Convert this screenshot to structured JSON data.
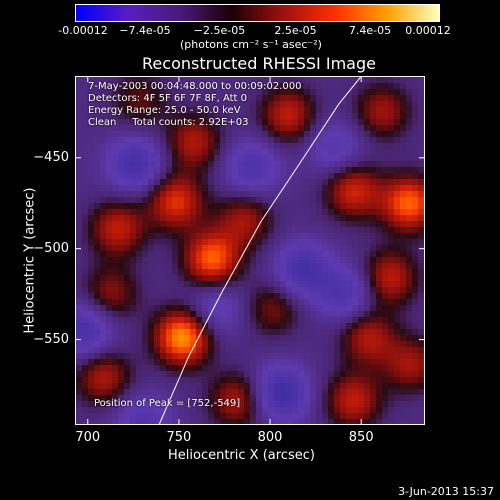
{
  "colorbar": {
    "ticks": [
      "-0.00012",
      "−7.4e-05",
      "−2.5e-05",
      "2.5e-05",
      "7.4e-05",
      "0.00012"
    ],
    "tick_values": [
      -0.00012,
      -7.4e-05,
      -2.5e-05,
      2.5e-05,
      7.4e-05,
      0.00012
    ],
    "units_label": "(photons cm⁻² s⁻¹ asec⁻²)",
    "colors": [
      "#0000ff",
      "#5a1cc0",
      "#4a1a7a",
      "#1a0006",
      "#a01010",
      "#ff3000",
      "#ffa000",
      "#ffffc0"
    ]
  },
  "chart_data": {
    "type": "heatmap",
    "title": "Reconstructed RHESSI Image",
    "xlabel": "Heliocentric X (arcsec)",
    "ylabel": "Heliocentric Y (arcsec)",
    "xlim": [
      693,
      885
    ],
    "ylim": [
      -597,
      -405
    ],
    "x_ticks": [
      700,
      750,
      800,
      850
    ],
    "y_ticks": [
      -450,
      -500,
      -550
    ],
    "annotations": [
      "7-May-2003 00:04:48.000 to 00:09:02.000",
      "Detectors: 4F 5F 6F 7F 8F, Att 0",
      "Energy Range: 25.0 - 50.0 keV",
      "Clean     Total counts: 2.92E+03"
    ],
    "peak_text": "Position of Peak = [752,-549]",
    "peak_position": [
      752,
      -549
    ],
    "limb_points": [
      [
        739,
        -597
      ],
      [
        755,
        -560
      ],
      [
        773,
        -525
      ],
      [
        795,
        -485
      ],
      [
        815,
        -455
      ],
      [
        838,
        -420
      ],
      [
        850,
        -405
      ]
    ],
    "blobs": [
      {
        "x": 752,
        "y": -549,
        "v": 1.0
      },
      {
        "x": 748,
        "y": -474,
        "v": 0.7
      },
      {
        "x": 758,
        "y": -441,
        "v": 0.55
      },
      {
        "x": 716,
        "y": -489,
        "v": 0.6
      },
      {
        "x": 768,
        "y": -506,
        "v": 0.85
      },
      {
        "x": 712,
        "y": -525,
        "v": 0.45
      },
      {
        "x": 708,
        "y": -571,
        "v": 0.55
      },
      {
        "x": 782,
        "y": -584,
        "v": 0.55
      },
      {
        "x": 786,
        "y": -484,
        "v": 0.5
      },
      {
        "x": 810,
        "y": -426,
        "v": 0.6
      },
      {
        "x": 862,
        "y": -424,
        "v": 0.5
      },
      {
        "x": 846,
        "y": -468,
        "v": 0.65
      },
      {
        "x": 877,
        "y": -475,
        "v": 0.85
      },
      {
        "x": 866,
        "y": -516,
        "v": 0.6
      },
      {
        "x": 854,
        "y": -549,
        "v": 0.55
      },
      {
        "x": 878,
        "y": -564,
        "v": 0.5
      },
      {
        "x": 846,
        "y": -584,
        "v": 0.6
      },
      {
        "x": 802,
        "y": -533,
        "v": 0.4
      },
      {
        "x": 728,
        "y": -418,
        "v": 0.35
      },
      {
        "x": 790,
        "y": -455,
        "v": -0.5
      },
      {
        "x": 726,
        "y": -453,
        "v": -0.6
      },
      {
        "x": 698,
        "y": -545,
        "v": -0.6
      },
      {
        "x": 806,
        "y": -580,
        "v": -0.7
      },
      {
        "x": 818,
        "y": -512,
        "v": -0.6
      },
      {
        "x": 842,
        "y": -525,
        "v": -0.5
      },
      {
        "x": 836,
        "y": -444,
        "v": -0.4
      },
      {
        "x": 730,
        "y": -596,
        "v": -0.45
      },
      {
        "x": 770,
        "y": -533,
        "v": -0.4
      }
    ]
  },
  "timestamp": "3-Jun-2013 15:37"
}
